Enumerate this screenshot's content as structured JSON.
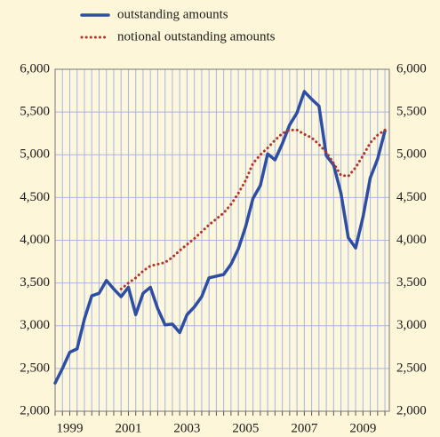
{
  "chart_data": {
    "type": "line",
    "x": [
      1999,
      1999.25,
      1999.5,
      1999.75,
      2000,
      2000.25,
      2000.5,
      2000.75,
      2001,
      2001.25,
      2001.5,
      2001.75,
      2002,
      2002.25,
      2002.5,
      2002.75,
      2003,
      2003.25,
      2003.5,
      2003.75,
      2004,
      2004.25,
      2004.5,
      2004.75,
      2005,
      2005.25,
      2005.5,
      2005.75,
      2006,
      2006.25,
      2006.5,
      2006.75,
      2007,
      2007.25,
      2007.5,
      2007.75,
      2008,
      2008.25,
      2008.5,
      2008.75,
      2009,
      2009.25,
      2009.5,
      2009.75,
      2010,
      2010.25
    ],
    "series": [
      {
        "name": "outstanding amounts",
        "color": "#2d4ea3",
        "style": "solid",
        "values": [
          2330,
          2500,
          2690,
          2730,
          3080,
          3350,
          3380,
          3530,
          3430,
          3340,
          3450,
          3130,
          3380,
          3450,
          3200,
          3010,
          3020,
          2920,
          3130,
          3220,
          3340,
          3560,
          3580,
          3600,
          3720,
          3900,
          4160,
          4490,
          4640,
          5010,
          4940,
          5130,
          5350,
          5490,
          5740,
          5650,
          5570,
          4990,
          4880,
          4550,
          4030,
          3910,
          4270,
          4730,
          4950,
          5280
        ]
      },
      {
        "name": "notional outstanding amounts",
        "color": "#b3342c",
        "style": "dotted",
        "values": [
          null,
          null,
          null,
          null,
          null,
          null,
          null,
          null,
          null,
          3430,
          3500,
          3560,
          3640,
          3700,
          3720,
          3740,
          3800,
          3880,
          3950,
          4020,
          4100,
          4180,
          4250,
          4320,
          4420,
          4550,
          4700,
          4900,
          5000,
          5080,
          5170,
          5250,
          5290,
          5290,
          5240,
          5200,
          5120,
          5030,
          4900,
          4760,
          4750,
          4850,
          4990,
          5140,
          5230,
          5290
        ]
      }
    ],
    "xlim": [
      1999,
      2010.4
    ],
    "xticks": [
      {
        "value": 1999.5,
        "label": "1999"
      },
      {
        "value": 2001.5,
        "label": "2001"
      },
      {
        "value": 2003.5,
        "label": "2003"
      },
      {
        "value": 2005.5,
        "label": "2005"
      },
      {
        "value": 2007.5,
        "label": "2007"
      },
      {
        "value": 2009.5,
        "label": "2009"
      }
    ],
    "ylim": [
      2000,
      6000
    ],
    "yticks": [
      {
        "value": 2000,
        "label": "2,000"
      },
      {
        "value": 2500,
        "label": "2,500"
      },
      {
        "value": 3000,
        "label": "3,000"
      },
      {
        "value": 3500,
        "label": "3,500"
      },
      {
        "value": 4000,
        "label": "4,000"
      },
      {
        "value": 4500,
        "label": "4,500"
      },
      {
        "value": 5000,
        "label": "5,000"
      },
      {
        "value": 5500,
        "label": "5,500"
      },
      {
        "value": 6000,
        "label": "6,000"
      }
    ],
    "grid": true
  }
}
